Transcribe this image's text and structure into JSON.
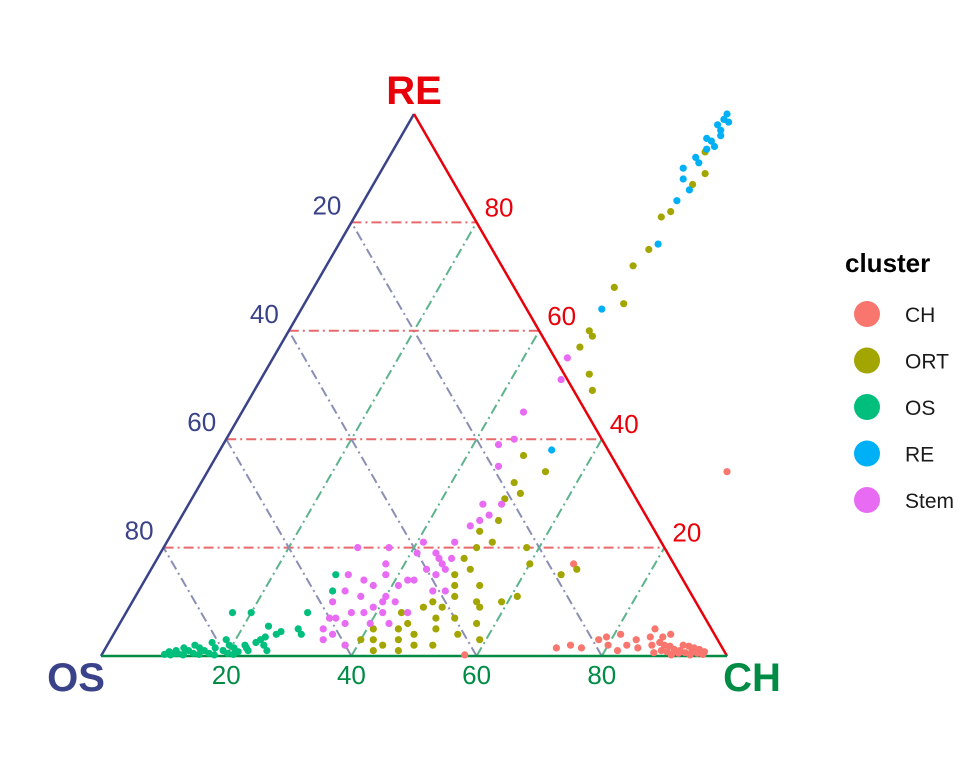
{
  "chart_data": {
    "type": "scatter",
    "subtype": "ternary",
    "axes": {
      "top": {
        "label": "RE",
        "color": "#e8000b",
        "ticks": [
          "20",
          "40",
          "60",
          "80"
        ]
      },
      "left": {
        "label": "OS",
        "color": "#3a4389",
        "ticks": [
          "20",
          "40",
          "60",
          "80"
        ]
      },
      "right": {
        "label": "CH",
        "color": "#008c45",
        "ticks": [
          "20",
          "40",
          "60",
          "80"
        ]
      }
    },
    "axis_ranges": {
      "OS": [
        0,
        100
      ],
      "CH": [
        0,
        100
      ],
      "RE": [
        0,
        100
      ]
    },
    "grid": true,
    "grid_style": "dash-dot",
    "grid_colors": {
      "RE": "#e8696c",
      "OS": "#8a8fb4",
      "CH": "#5cb38c"
    },
    "legend": {
      "title": "cluster",
      "placement": "right",
      "entries": [
        {
          "name": "CH",
          "color": "#f8766d"
        },
        {
          "name": "ORT",
          "color": "#a3a500"
        },
        {
          "name": "OS",
          "color": "#00bf7d"
        },
        {
          "name": "RE",
          "color": "#00b0f6"
        },
        {
          "name": "Stem",
          "color": "#e76bf3"
        }
      ]
    },
    "point_fields": [
      "CH",
      "RE"
    ],
    "series": [
      {
        "name": "CH",
        "color": "#f8766d",
        "points": [
          [
            74,
            2
          ],
          [
            72,
            1.5
          ],
          [
            76,
            1.5
          ],
          [
            78,
            3
          ],
          [
            79,
            3.5
          ],
          [
            80,
            2
          ],
          [
            81,
            4
          ],
          [
            82,
            1
          ],
          [
            83,
            2
          ],
          [
            84,
            3
          ],
          [
            85,
            1.5
          ],
          [
            86,
            3.5
          ],
          [
            86,
            5
          ],
          [
            87,
            2
          ],
          [
            88,
            0.6
          ],
          [
            88,
            2.5
          ],
          [
            89,
            1
          ],
          [
            89,
            2
          ],
          [
            90,
            0.8
          ],
          [
            90,
            1.8
          ],
          [
            91,
            1.2
          ],
          [
            91,
            0.4
          ],
          [
            92,
            1
          ],
          [
            92,
            0.5
          ],
          [
            92,
            2
          ],
          [
            93,
            0.6
          ],
          [
            93,
            1.8
          ],
          [
            94,
            0.8
          ],
          [
            94,
            1.5
          ],
          [
            95,
            0.5
          ],
          [
            95,
            1.2
          ],
          [
            96,
            0.8
          ],
          [
            96,
            0.3
          ],
          [
            94,
            0.2
          ],
          [
            91,
            0.2
          ],
          [
            88,
            3.5
          ],
          [
            89,
            4
          ],
          [
            67,
            17
          ],
          [
            83,
            34
          ],
          [
            58,
            0.2
          ]
        ]
      },
      {
        "name": "ORT",
        "color": "#a3a500",
        "points": [
          [
            50,
            93
          ],
          [
            51,
            87
          ],
          [
            52,
            89
          ],
          [
            50,
            82
          ],
          [
            49,
            81
          ],
          [
            50,
            75
          ],
          [
            49,
            72
          ],
          [
            48,
            68
          ],
          [
            51,
            65
          ],
          [
            48,
            60
          ],
          [
            49,
            59
          ],
          [
            48,
            57
          ],
          [
            52,
            52
          ],
          [
            54,
            49
          ],
          [
            49,
            37
          ],
          [
            50,
            32
          ],
          [
            54,
            34
          ],
          [
            52,
            30
          ],
          [
            50,
            29
          ],
          [
            51,
            25
          ],
          [
            49,
            23
          ],
          [
            52,
            21
          ],
          [
            50,
            20
          ],
          [
            58,
            20
          ],
          [
            49,
            18
          ],
          [
            51,
            16
          ],
          [
            54,
            13
          ],
          [
            60,
            17
          ],
          [
            66,
            15
          ],
          [
            68,
            16
          ],
          [
            61,
            11
          ],
          [
            59,
            10
          ],
          [
            56,
            9
          ],
          [
            55,
            10
          ],
          [
            49,
            15
          ],
          [
            50,
            13
          ],
          [
            51,
            11
          ],
          [
            48,
            10
          ],
          [
            50,
            9
          ],
          [
            47,
            9
          ],
          [
            46,
            6
          ],
          [
            44,
            8
          ],
          [
            45,
            5
          ],
          [
            41,
            5
          ],
          [
            42,
            3
          ],
          [
            44,
            2
          ],
          [
            46,
            3
          ],
          [
            48,
            4
          ],
          [
            51,
            5
          ],
          [
            53,
            7
          ],
          [
            55,
            4
          ],
          [
            57,
            6
          ],
          [
            52,
            2
          ],
          [
            49,
            2
          ],
          [
            43,
            1
          ],
          [
            47,
            1
          ],
          [
            40,
            3
          ],
          [
            38,
            2
          ],
          [
            50,
            7
          ],
          [
            59,
            3
          ]
        ]
      },
      {
        "name": "OS",
        "color": "#00bf7d",
        "points": [
          [
            10,
            0.3
          ],
          [
            10.5,
            0.8
          ],
          [
            11,
            0.2
          ],
          [
            11.5,
            1
          ],
          [
            12,
            0.5
          ],
          [
            12.5,
            1.5
          ],
          [
            13,
            0.3
          ],
          [
            13.5,
            1
          ],
          [
            14,
            2
          ],
          [
            14.5,
            0.5
          ],
          [
            15,
            1.5
          ],
          [
            15.5,
            0.3
          ],
          [
            16,
            1
          ],
          [
            16.5,
            2.5
          ],
          [
            17,
            0.5
          ],
          [
            17.5,
            1.5
          ],
          [
            18,
            0.2
          ],
          [
            18.5,
            3
          ],
          [
            19,
            1
          ],
          [
            19.5,
            2
          ],
          [
            20,
            0.5
          ],
          [
            20.5,
            1.5
          ],
          [
            21,
            0.3
          ],
          [
            22,
            2
          ],
          [
            23,
            1
          ],
          [
            24,
            3
          ],
          [
            25,
            2
          ],
          [
            26,
            4
          ],
          [
            26.5,
            4.5
          ],
          [
            24.5,
            3.5
          ],
          [
            23.5,
            2.5
          ],
          [
            22.5,
            1.5
          ],
          [
            21.5,
            0.8
          ],
          [
            17,
            8
          ],
          [
            20,
            8
          ],
          [
            24,
            5.5
          ],
          [
            26,
            1
          ],
          [
            30,
            15
          ],
          [
            31,
            12
          ],
          [
            29,
            8
          ],
          [
            30,
            4
          ],
          [
            29,
            5
          ],
          [
            11.5,
            0.5
          ],
          [
            13,
            0.2
          ]
        ]
      },
      {
        "name": "RE",
        "color": "#00b0f6",
        "points": [
          [
            50,
            100
          ],
          [
            50,
            99
          ],
          [
            51,
            98.5
          ],
          [
            49.5,
            98
          ],
          [
            50.5,
            97
          ],
          [
            51,
            96
          ],
          [
            49,
            95.5
          ],
          [
            50,
            95
          ],
          [
            51,
            94
          ],
          [
            50,
            93.5
          ],
          [
            49,
            92
          ],
          [
            50,
            91
          ],
          [
            48,
            90
          ],
          [
            49,
            88
          ],
          [
            51,
            86
          ],
          [
            50,
            84
          ],
          [
            51,
            76
          ],
          [
            48,
            64
          ],
          [
            53,
            38
          ]
        ]
      },
      {
        "name": "Stem",
        "color": "#e76bf3",
        "points": [
          [
            47,
            55
          ],
          [
            48,
            51
          ],
          [
            45,
            45
          ],
          [
            46,
            40
          ],
          [
            44,
            39
          ],
          [
            46,
            35
          ],
          [
            47,
            28
          ],
          [
            49,
            26
          ],
          [
            50,
            28
          ],
          [
            48,
            25
          ],
          [
            47,
            24
          ],
          [
            46,
            21
          ],
          [
            44,
            19
          ],
          [
            45,
            18
          ],
          [
            46,
            17
          ],
          [
            47,
            16
          ],
          [
            49,
            12
          ],
          [
            47,
            12
          ],
          [
            46,
            15
          ],
          [
            44,
            16
          ],
          [
            43,
            14
          ],
          [
            42,
            14
          ],
          [
            41,
            13
          ],
          [
            40,
            11
          ],
          [
            38,
            15
          ],
          [
            37,
            17
          ],
          [
            36,
            20
          ],
          [
            35,
            14
          ],
          [
            36,
            11
          ],
          [
            37,
            13
          ],
          [
            36,
            8
          ],
          [
            38,
            8
          ],
          [
            34,
            7
          ],
          [
            33,
            12
          ],
          [
            32,
            15
          ],
          [
            31,
            20
          ],
          [
            32,
            10
          ],
          [
            33,
            5
          ],
          [
            35,
            4
          ],
          [
            36,
            6
          ],
          [
            38,
            2
          ],
          [
            40,
            10
          ],
          [
            42,
            10
          ],
          [
            41,
            8
          ],
          [
            45,
            8
          ],
          [
            33,
            7
          ],
          [
            34,
            3
          ],
          [
            39,
            9
          ],
          [
            40,
            6
          ],
          [
            43,
            6
          ],
          [
            47,
            18
          ],
          [
            41,
            19
          ],
          [
            41,
            21
          ]
        ]
      }
    ]
  }
}
